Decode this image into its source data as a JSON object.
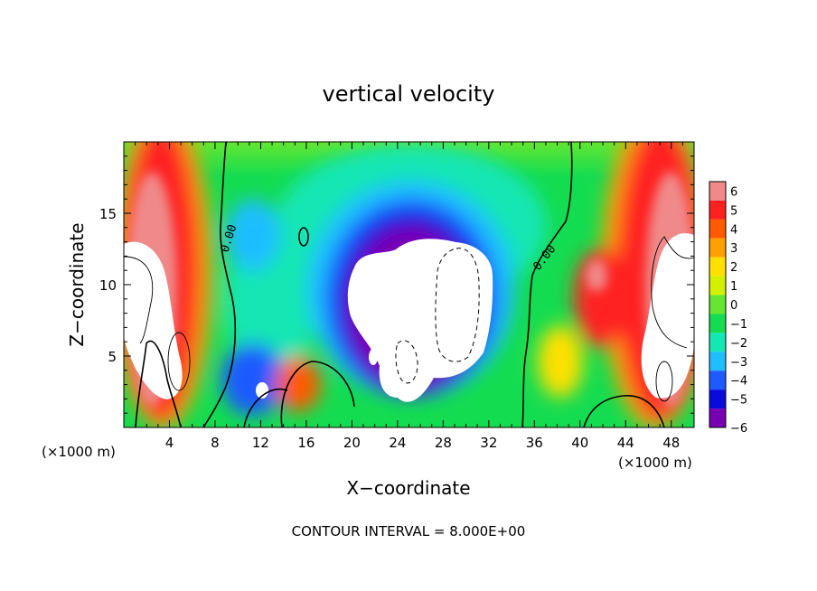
{
  "chart_data": {
    "type": "heatmap",
    "title": "vertical velocity",
    "xlabel": "X−coordinate",
    "ylabel": "Z−coordinate",
    "x_unit_left": "(×1000 m)",
    "x_unit_right": "(×1000 m)",
    "xlim": [
      0,
      50
    ],
    "ylim": [
      0,
      20
    ],
    "x_ticks": [
      4,
      8,
      12,
      16,
      20,
      24,
      28,
      32,
      36,
      40,
      44,
      48
    ],
    "x_tick_labels": [
      "4",
      "8",
      "12",
      "16",
      "20",
      "24",
      "28",
      "32",
      "36",
      "40",
      "44",
      "48"
    ],
    "y_ticks": [
      5,
      10,
      15
    ],
    "y_tick_labels": [
      "5",
      "10",
      "15"
    ],
    "colorbar": {
      "labels": [
        "6",
        "5",
        "4",
        "3",
        "2",
        "1",
        "0",
        "−1",
        "−2",
        "−3",
        "−4",
        "−5",
        "−6"
      ],
      "colors": [
        "#f08a8a",
        "#ff2020",
        "#ff5a00",
        "#ffa000",
        "#ffe000",
        "#d2f000",
        "#64e632",
        "#14dc50",
        "#14e6b4",
        "#1ebeff",
        "#1e5aff",
        "#0a0adc",
        "#7800b4"
      ]
    },
    "contour_labels": [
      "0.00",
      "0.00"
    ],
    "footer": "CONTOUR INTERVAL = 8.000E+00"
  }
}
